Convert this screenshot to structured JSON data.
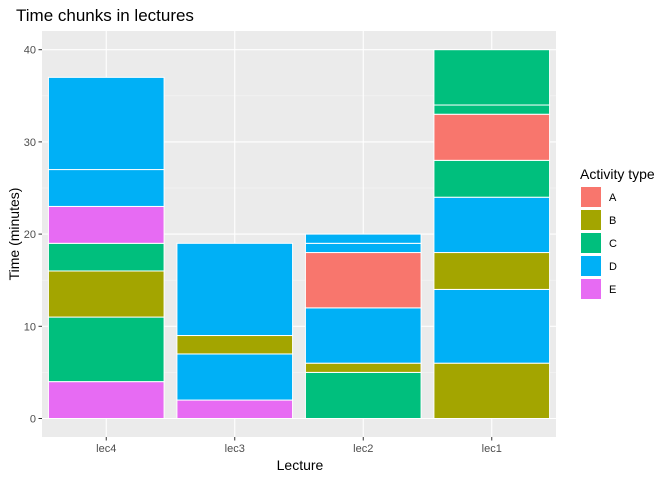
{
  "chart_data": {
    "type": "bar",
    "stacked": true,
    "title": "Time chunks in lectures",
    "xlabel": "Lecture",
    "ylabel": "Time (minutes)",
    "ylim": [
      0,
      40
    ],
    "yticks": [
      0,
      10,
      20,
      30,
      40
    ],
    "categories": [
      "lec4",
      "lec3",
      "lec2",
      "lec1"
    ],
    "grid": true,
    "legend": {
      "title": "Activity type",
      "position": "right",
      "entries": [
        {
          "label": "A",
          "color": "#F8766D"
        },
        {
          "label": "B",
          "color": "#A3A500"
        },
        {
          "label": "C",
          "color": "#00BF7D"
        },
        {
          "label": "D",
          "color": "#00B0F6"
        },
        {
          "label": "E",
          "color": "#E76BF3"
        }
      ]
    },
    "stacks": [
      {
        "category": "lec4",
        "segments": [
          {
            "type": "E",
            "value": 4
          },
          {
            "type": "C",
            "value": 7
          },
          {
            "type": "B",
            "value": 5
          },
          {
            "type": "C",
            "value": 3
          },
          {
            "type": "E",
            "value": 4
          },
          {
            "type": "D",
            "value": 4
          },
          {
            "type": "D",
            "value": 10
          }
        ]
      },
      {
        "category": "lec3",
        "segments": [
          {
            "type": "E",
            "value": 2
          },
          {
            "type": "D",
            "value": 5
          },
          {
            "type": "B",
            "value": 2
          },
          {
            "type": "D",
            "value": 10
          }
        ]
      },
      {
        "category": "lec2",
        "segments": [
          {
            "type": "C",
            "value": 5
          },
          {
            "type": "B",
            "value": 1
          },
          {
            "type": "D",
            "value": 6
          },
          {
            "type": "A",
            "value": 6
          },
          {
            "type": "D",
            "value": 1
          },
          {
            "type": "D",
            "value": 1
          }
        ]
      },
      {
        "category": "lec1",
        "segments": [
          {
            "type": "B",
            "value": 6
          },
          {
            "type": "D",
            "value": 8
          },
          {
            "type": "B",
            "value": 4
          },
          {
            "type": "D",
            "value": 6
          },
          {
            "type": "C",
            "value": 4
          },
          {
            "type": "A",
            "value": 5
          },
          {
            "type": "C",
            "value": 1
          },
          {
            "type": "C",
            "value": 6
          }
        ]
      }
    ]
  },
  "colors": {
    "panel_bg": "#EBEBEB",
    "grid_major": "#FFFFFF",
    "grid_minor": "#F5F5F5",
    "axis_text": "#4D4D4D",
    "tick": "#333333",
    "text": "#000000"
  }
}
